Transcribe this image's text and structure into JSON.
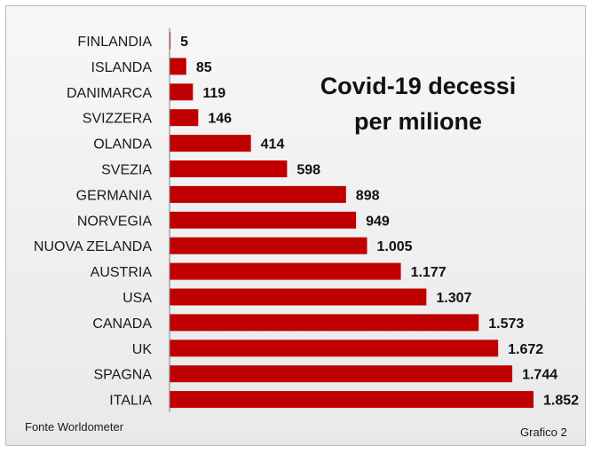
{
  "chart_data": {
    "type": "bar",
    "orientation": "horizontal",
    "title_lines": [
      "Covid-19 decessi",
      "per milione"
    ],
    "categories": [
      "FINLANDIA",
      "ISLANDA",
      "DANIMARCA",
      "SVIZZERA",
      "OLANDA",
      "SVEZIA",
      "GERMANIA",
      "NORVEGIA",
      "NUOVA ZELANDA",
      "AUSTRIA",
      "USA",
      "CANADA",
      "UK",
      "SPAGNA",
      "ITALIA"
    ],
    "values": [
      5,
      85,
      119,
      146,
      414,
      598,
      898,
      949,
      1005,
      1177,
      1307,
      1573,
      1672,
      1744,
      1852
    ],
    "value_labels": [
      "5",
      "85",
      "119",
      "146",
      "414",
      "598",
      "898",
      "949",
      "1.005",
      "1.177",
      "1.307",
      "1.573",
      "1.672",
      "1.744",
      "1.852"
    ],
    "xlim": [
      0,
      1852
    ],
    "grid": false,
    "legend": "none",
    "bar_color": "#c00000",
    "source_note": "Fonte Worldometer",
    "figure_label": "Grafico 2"
  }
}
